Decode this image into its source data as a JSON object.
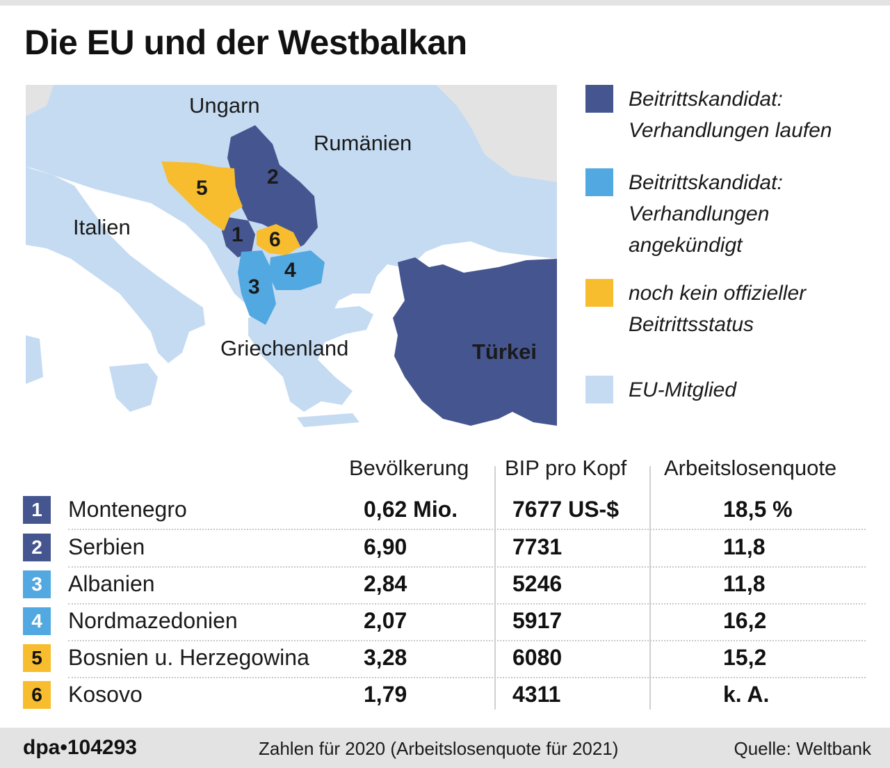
{
  "title": "Die EU und der Westbalkan",
  "colors": {
    "negotiating": "#45558f",
    "announced": "#52a8e0",
    "no_status": "#f7bd2e",
    "eu_member": "#c5dbf2",
    "other_land": "#e3e3e3",
    "sea": "#ffffff"
  },
  "map": {
    "labels": {
      "hungary": "Ungarn",
      "romania": "Rumänien",
      "italy": "Italien",
      "greece": "Griechenland",
      "turkey": "Türkei"
    },
    "numbers": [
      "1",
      "2",
      "3",
      "4",
      "5",
      "6"
    ]
  },
  "legend": [
    {
      "label": "Beitrittskandidat:\nVerhandlungen laufen",
      "color": "#45558f"
    },
    {
      "label": "Beitrittskandidat:\nVerhandlungen\nangekündigt",
      "color": "#52a8e0"
    },
    {
      "label": "noch kein offizieller\nBeitrittsstatus",
      "color": "#f7bd2e"
    },
    {
      "label": "EU-Mitglied",
      "color": "#c5dbf2"
    }
  ],
  "table": {
    "headers": {
      "population": "Bevölkerung",
      "gdp": "BIP pro Kopf",
      "unemployment": "Arbeitslosenquote"
    },
    "rows": [
      {
        "num": "1",
        "country": "Montenegro",
        "population": "0,62 Mio.",
        "gdp": "7677 US-$",
        "unemployment": "18,5 %",
        "color": "#45558f"
      },
      {
        "num": "2",
        "country": "Serbien",
        "population": "6,90",
        "gdp": "7731",
        "unemployment": "11,8",
        "color": "#45558f"
      },
      {
        "num": "3",
        "country": "Albanien",
        "population": "2,84",
        "gdp": "5246",
        "unemployment": "11,8",
        "color": "#52a8e0"
      },
      {
        "num": "4",
        "country": "Nordmazedonien",
        "population": "2,07",
        "gdp": "5917",
        "unemployment": "16,2",
        "color": "#52a8e0"
      },
      {
        "num": "5",
        "country": "Bosnien u. Herzegowina",
        "population": "3,28",
        "gdp": "6080",
        "unemployment": "15,2",
        "color": "#f7bd2e"
      },
      {
        "num": "6",
        "country": "Kosovo",
        "population": "1,79",
        "gdp": "4311",
        "unemployment": "k. A.",
        "color": "#f7bd2e"
      }
    ]
  },
  "footer": {
    "brand": "dpa•104293",
    "note": "Zahlen für 2020 (Arbeitslosenquote für 2021)",
    "source": "Quelle: Weltbank"
  }
}
